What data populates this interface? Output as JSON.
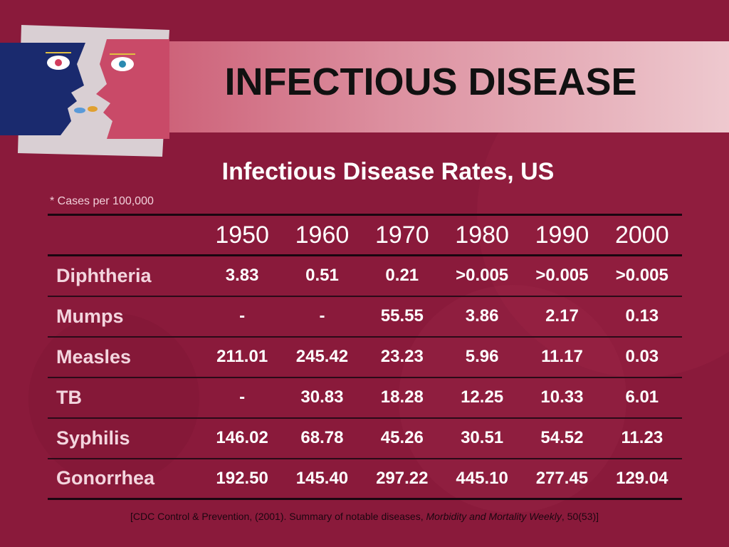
{
  "slide": {
    "title": "INFECTIOUS DISEASE"
  },
  "table": {
    "title": "Infectious Disease Rates, US",
    "unit_note": "*  Cases per 100,000",
    "columns": [
      "1950",
      "1960",
      "1970",
      "1980",
      "1990",
      "2000"
    ],
    "rows": [
      {
        "disease": "Diphtheria",
        "values": [
          "3.83",
          "0.51",
          "0.21",
          ">0.005",
          ">0.005",
          ">0.005"
        ]
      },
      {
        "disease": "Mumps",
        "values": [
          "-",
          "-",
          "55.55",
          "3.86",
          "2.17",
          "0.13"
        ]
      },
      {
        "disease": "Measles",
        "values": [
          "211.01",
          "245.42",
          "23.23",
          "5.96",
          "11.17",
          "0.03"
        ]
      },
      {
        "disease": "TB",
        "values": [
          "-",
          "30.83",
          "18.28",
          "12.25",
          "10.33",
          "6.01"
        ]
      },
      {
        "disease": "Syphilis",
        "values": [
          "146.02",
          "68.78",
          "45.26",
          "30.51",
          "54.52",
          "11.23"
        ]
      },
      {
        "disease": "Gonorrhea",
        "values": [
          "192.50",
          "145.40",
          "297.22",
          "445.10",
          "277.45",
          "129.04"
        ]
      }
    ]
  },
  "citation": {
    "prefix": "[CDC Control & Prevention, (2001).  Summary of notable diseases, ",
    "journal": "Morbidity and Mortality Weekly",
    "suffix": ", 50(53)]"
  },
  "colors": {
    "background": "#8a1a3b",
    "title_band_end": "#eec9cf",
    "face_blue": "#1a2a6e"
  },
  "decor": {
    "logo": "two-faces-illustration"
  }
}
